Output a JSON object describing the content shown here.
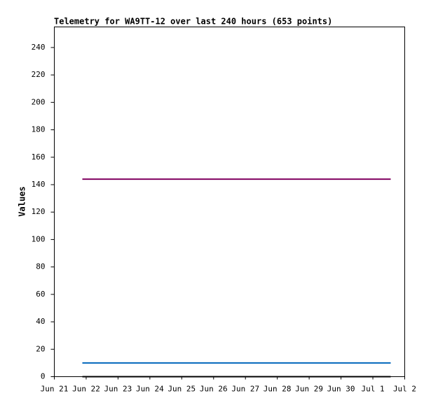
{
  "chart_data": {
    "type": "line",
    "title": "Telemetry for WA9TT-12 over last 240 hours (653 points)",
    "y_label": "Values",
    "x": [
      0.88,
      10.56
    ],
    "series": [
      {
        "color": "#800060",
        "values": [
          144,
          144
        ]
      },
      {
        "color": "#0066bb",
        "values": [
          10,
          10
        ]
      },
      {
        "color": "#000000",
        "values": [
          0,
          0
        ]
      }
    ],
    "xlim": [
      0,
      11
    ],
    "xticks": [
      {
        "value": 0,
        "label": "Jun 21"
      },
      {
        "value": 1,
        "label": "Jun 22"
      },
      {
        "value": 2,
        "label": "Jun 23"
      },
      {
        "value": 3,
        "label": "Jun 24"
      },
      {
        "value": 4,
        "label": "Jun 25"
      },
      {
        "value": 5,
        "label": "Jun 26"
      },
      {
        "value": 6,
        "label": "Jun 27"
      },
      {
        "value": 7,
        "label": "Jun 28"
      },
      {
        "value": 8,
        "label": "Jun 29"
      },
      {
        "value": 9,
        "label": "Jun 30"
      },
      {
        "value": 10,
        "label": "Jul 1"
      },
      {
        "value": 11,
        "label": "Jul 2"
      }
    ],
    "ylim": [
      0,
      255
    ],
    "yticks": [
      0,
      20,
      40,
      60,
      80,
      100,
      120,
      140,
      160,
      180,
      200,
      220,
      240
    ],
    "grid": false
  }
}
